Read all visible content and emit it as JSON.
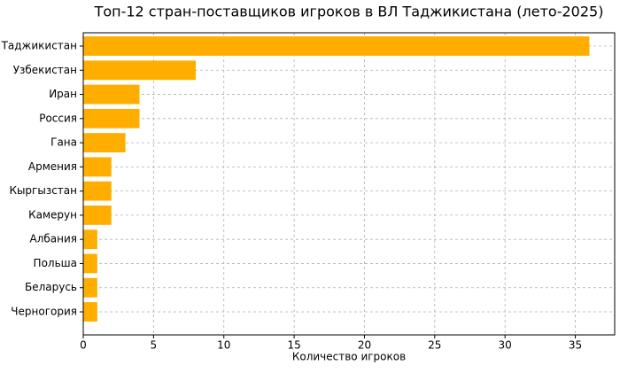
{
  "chart_data": {
    "type": "barh",
    "title": "Топ-12 стран-поставщиков игроков в ВЛ Таджикистана (лето-2025)",
    "x_label": "Количество игроков",
    "categories": [
      "Таджикистан",
      "Узбекистан",
      "Иран",
      "Россия",
      "Гана",
      "Армения",
      "Кыргызстан",
      "Камерун",
      "Албания",
      "Польша",
      "Беларусь",
      "Черногория"
    ],
    "values": [
      36,
      8,
      4,
      4,
      3,
      2,
      2,
      2,
      1,
      1,
      1,
      1
    ],
    "color": "#ffae00",
    "xlim": [
      0,
      37.8
    ],
    "xticks": [
      0,
      5,
      10,
      15,
      20,
      25,
      30,
      35
    ],
    "grid": true
  }
}
